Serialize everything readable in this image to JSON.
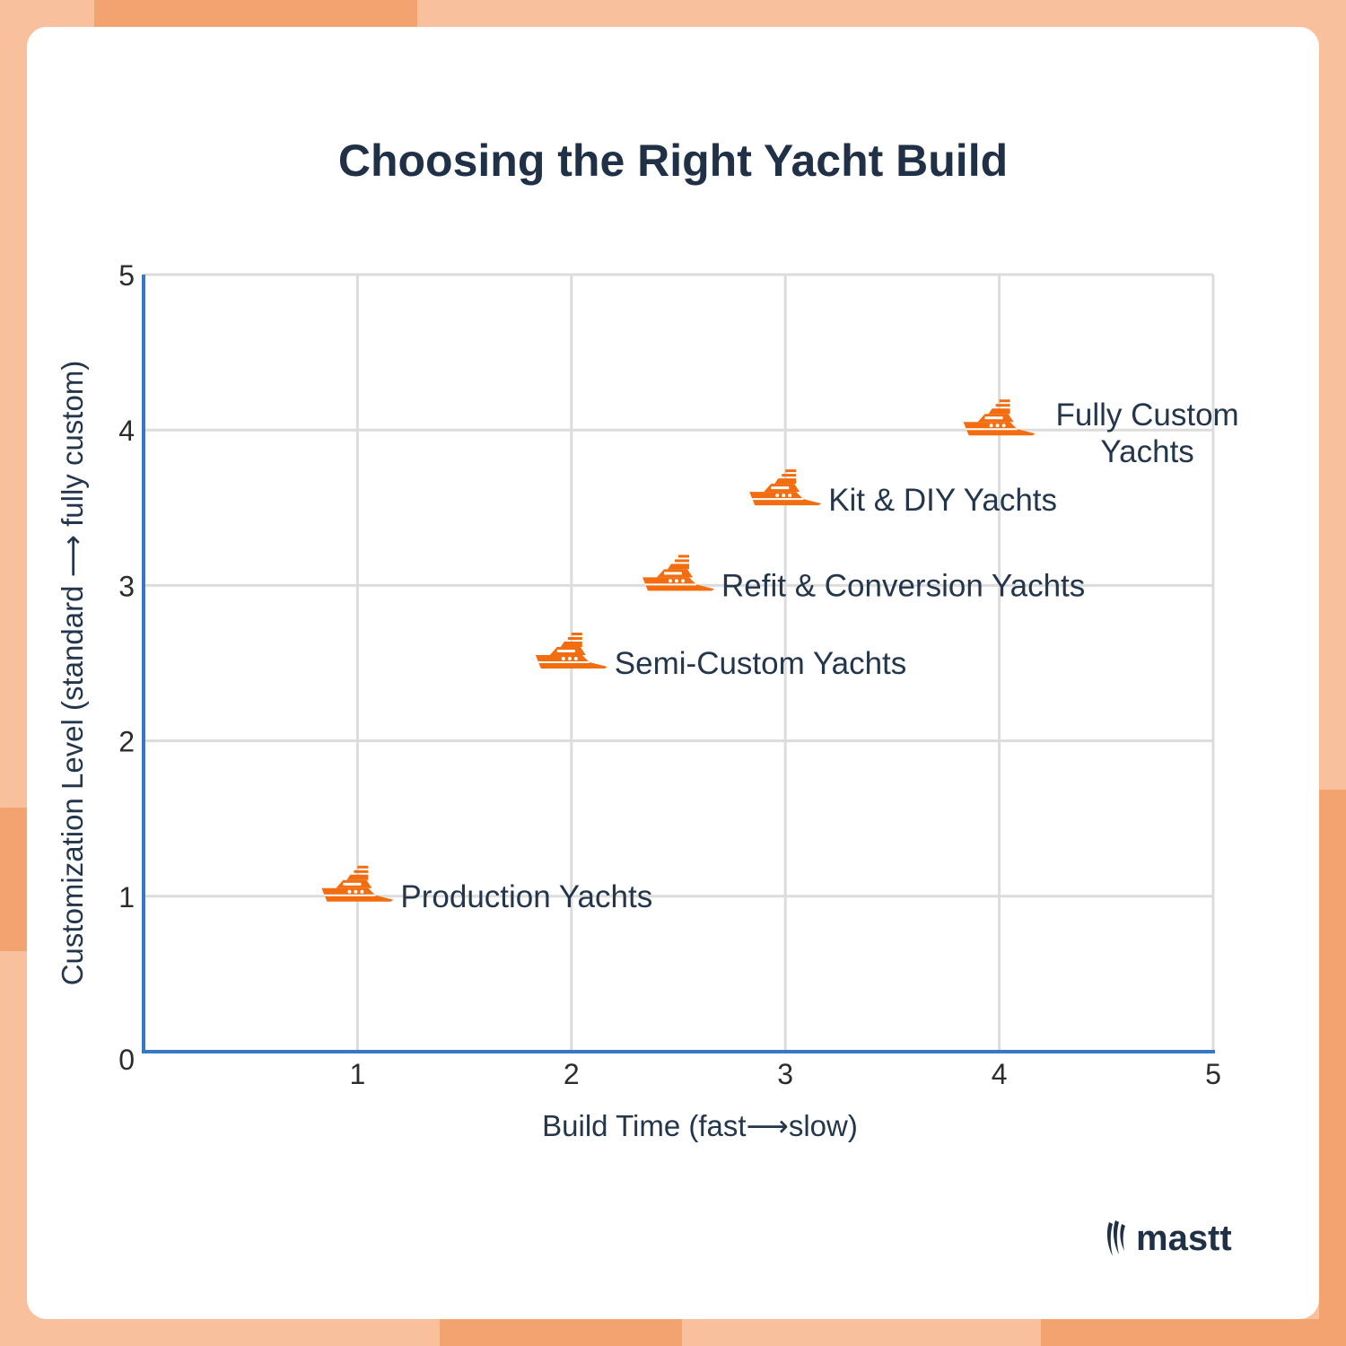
{
  "colors": {
    "background": "#f8c09c",
    "accent_shape": "#f3a370",
    "card": "#ffffff",
    "title": "#1f3047",
    "axis": "#3578c4",
    "grid": "#dcdcdc",
    "marker": "#f26d0f",
    "label": "#24364c"
  },
  "icons": {
    "marker": "yacht-icon",
    "logo": "mastt-logo-icon"
  },
  "brand": {
    "name": "mastt"
  },
  "chart_data": {
    "type": "scatter",
    "title": "Choosing the Right Yacht Build",
    "xlabel": "Build Time (fast⟶slow)",
    "ylabel": "Customization Level (standard ⟶ fully custom)",
    "xlim": [
      0,
      5
    ],
    "ylim": [
      0,
      5
    ],
    "xticks": [
      1,
      2,
      3,
      4,
      5
    ],
    "yticks": [
      0,
      1,
      2,
      3,
      4,
      5
    ],
    "grid": true,
    "points": [
      {
        "label": "Production Yachts",
        "x": 1.0,
        "y": 1.0
      },
      {
        "label": "Semi-Custom Yachts",
        "x": 2.0,
        "y": 2.5
      },
      {
        "label": "Refit & Conversion Yachts",
        "x": 2.5,
        "y": 3.0
      },
      {
        "label": "Kit & DIY Yachts",
        "x": 3.0,
        "y": 3.55
      },
      {
        "label": "Fully Custom Yachts",
        "x": 4.0,
        "y": 4.0
      }
    ]
  }
}
